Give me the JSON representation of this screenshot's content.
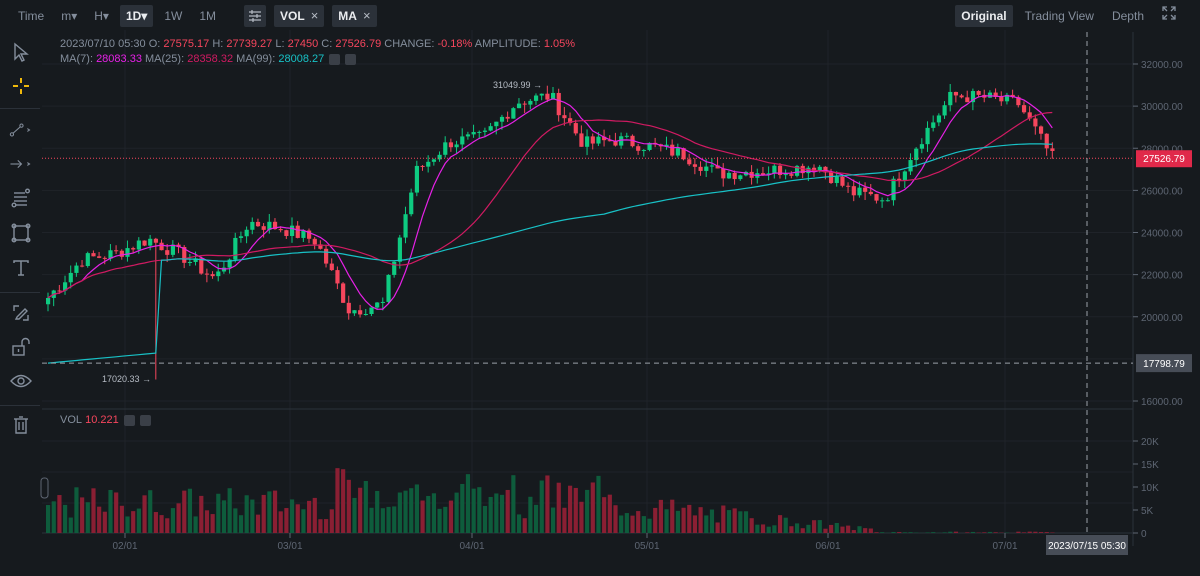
{
  "toolbar": {
    "time_label": "Time",
    "intervals": [
      "m▾",
      "H▾",
      "1D▾",
      "1W",
      "1M"
    ],
    "active_interval": "1D▾",
    "indicator_buttons": [
      {
        "label": "VOL",
        "close": "×"
      },
      {
        "label": "MA",
        "close": "×"
      }
    ],
    "views": [
      "Original",
      "Trading View",
      "Depth"
    ],
    "active_view": "Original"
  },
  "sidebar": {
    "tools": [
      "cursor-icon",
      "crosshair-icon",
      "trend-line-icon",
      "arrow-icon",
      "fib-icon",
      "rectangle-icon",
      "text-icon",
      "edit-pen-icon",
      "unlock-icon",
      "eye-icon",
      "trash-icon"
    ]
  },
  "ohlc": {
    "date": "2023/07/10 05:30",
    "o_label": "O:",
    "o": "27575.17",
    "h_label": "H:",
    "h": "27739.27",
    "l_label": "L:",
    "l": "27450",
    "c_label": "C:",
    "c": "27526.79",
    "change_label": "CHANGE:",
    "change": "-0.18%",
    "amp_label": "AMPLITUDE:",
    "amp": "1.05%"
  },
  "ma_legend": {
    "ma7_label": "MA(7):",
    "ma7": "28083.33",
    "ma25_label": "MA(25):",
    "ma25": "28358.32",
    "ma99_label": "MA(99):",
    "ma99": "28008.27"
  },
  "vol_legend": {
    "label": "VOL",
    "value": "10.221"
  },
  "price_axis": {
    "ticks": [
      "32000.00",
      "30000.00",
      "28000.00",
      "26000.00",
      "24000.00",
      "22000.00",
      "20000.00",
      "16000.00"
    ],
    "current_price": "27526.79",
    "crosshair_price": "17798.79"
  },
  "vol_axis": {
    "ticks": [
      "20K",
      "15K",
      "10K",
      "5K",
      "0"
    ]
  },
  "time_axis": {
    "ticks": [
      "02/01",
      "03/01",
      "04/01",
      "05/01",
      "06/01",
      "07/01"
    ],
    "crosshair_time": "2023/07/15 05:30"
  },
  "annotations": {
    "high": "31049.99",
    "low": "17020.33"
  },
  "colors": {
    "up": "#0ecb81",
    "down": "#f6465d",
    "ma7": "#e621e6",
    "ma25": "#d01a62",
    "ma99": "#18c1c6",
    "bg": "#161a1e"
  },
  "chart_data": {
    "type": "candlestick",
    "title": "1D candlestick with MA(7), MA(25), MA(99) and volume",
    "x_ticks": [
      "02/01",
      "03/01",
      "04/01",
      "05/01",
      "06/01",
      "07/01"
    ],
    "ylim": [
      16000,
      33000
    ],
    "y_ticks": [
      16000,
      20000,
      22000,
      24000,
      26000,
      28000,
      30000,
      32000
    ],
    "vol_ylim": [
      0,
      20000
    ],
    "vol_ticks": [
      0,
      5000,
      10000,
      15000,
      20000
    ],
    "last_close": 27526.79,
    "marked_high": 31049.99,
    "marked_low": 17020.33,
    "approx_close_path": [
      {
        "date": "01/15",
        "close": 20900
      },
      {
        "date": "01/20",
        "close": 22700
      },
      {
        "date": "01/25",
        "close": 23000
      },
      {
        "date": "02/01",
        "close": 23700
      },
      {
        "date": "02/08",
        "close": 22900
      },
      {
        "date": "02/14",
        "close": 21800
      },
      {
        "date": "02/17",
        "close": 24500
      },
      {
        "date": "02/22",
        "close": 24200
      },
      {
        "date": "03/01",
        "close": 23600
      },
      {
        "date": "03/09",
        "close": 20300
      },
      {
        "date": "03/12",
        "close": 20600
      },
      {
        "date": "03/18",
        "close": 26900
      },
      {
        "date": "03/23",
        "close": 28300
      },
      {
        "date": "04/01",
        "close": 28500
      },
      {
        "date": "04/11",
        "close": 30200
      },
      {
        "date": "04/14",
        "close": 30500
      },
      {
        "date": "04/20",
        "close": 28200
      },
      {
        "date": "04/26",
        "close": 28400
      },
      {
        "date": "05/01",
        "close": 28100
      },
      {
        "date": "05/08",
        "close": 27700
      },
      {
        "date": "05/12",
        "close": 26800
      },
      {
        "date": "05/20",
        "close": 26900
      },
      {
        "date": "06/01",
        "close": 27000
      },
      {
        "date": "06/06",
        "close": 27200
      },
      {
        "date": "06/10",
        "close": 25900
      },
      {
        "date": "06/15",
        "close": 25600
      },
      {
        "date": "06/20",
        "close": 28300
      },
      {
        "date": "06/23",
        "close": 30500
      },
      {
        "date": "06/30",
        "close": 30400
      },
      {
        "date": "07/05",
        "close": 30100
      },
      {
        "date": "07/10",
        "close": 27527
      }
    ],
    "series": [
      {
        "name": "MA(7)",
        "last": 28083.33
      },
      {
        "name": "MA(25)",
        "last": 28358.32
      },
      {
        "name": "MA(99)",
        "last": 28008.27
      },
      {
        "name": "VOL",
        "last": 10.221
      }
    ]
  }
}
